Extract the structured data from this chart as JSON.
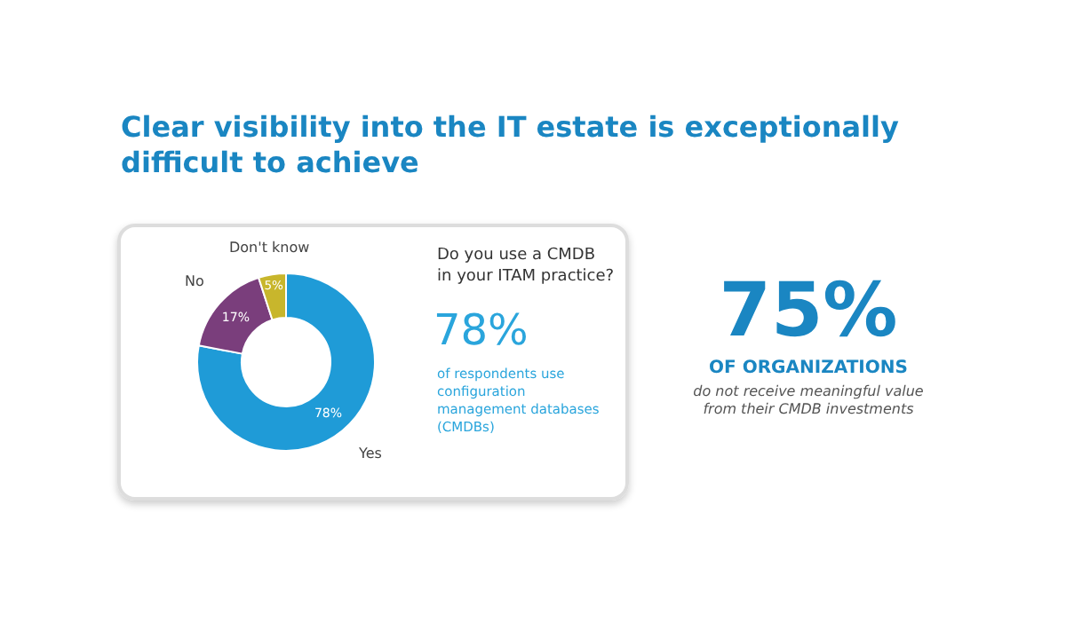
{
  "chart_data": {
    "type": "donut",
    "title": "Clear visibility into the IT estate is exceptionally difficult to achieve",
    "categories": [
      "Yes",
      "No",
      "Don't know"
    ],
    "values": [
      78,
      17,
      5
    ],
    "value_labels": [
      "78%",
      "17%",
      "5%"
    ],
    "colors": [
      "#1f9bd7",
      "#7a3e7c",
      "#c8b62c"
    ],
    "legend": false,
    "annotations": [
      "Do you use a CMDB in your ITAM practice?",
      "78%",
      "of respondents use configuration management databases (CMDBs)",
      "75%",
      "OF ORGANIZATIONS",
      "do not receive meaningful value from their CMDB investments"
    ]
  }
}
